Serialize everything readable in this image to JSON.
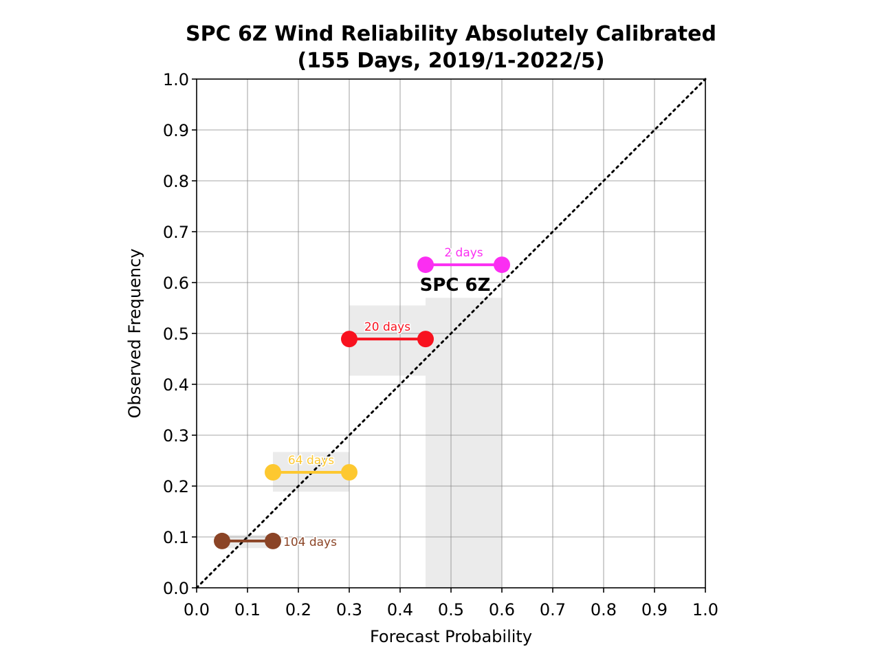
{
  "chart_data": {
    "type": "line",
    "title": "SPC 6Z Wind Reliability Absolutely Calibrated",
    "subtitle": "(155 Days, 2019/1-2022/5)",
    "xlabel": "Forecast Probability",
    "ylabel": "Observed Frequency",
    "xlim": [
      0.0,
      1.0
    ],
    "ylim": [
      0.0,
      1.0
    ],
    "xticks": [
      "0.0",
      "0.1",
      "0.2",
      "0.3",
      "0.4",
      "0.5",
      "0.6",
      "0.7",
      "0.8",
      "0.9",
      "1.0"
    ],
    "yticks": [
      "0.0",
      "0.1",
      "0.2",
      "0.3",
      "0.4",
      "0.5",
      "0.6",
      "0.7",
      "0.8",
      "0.9",
      "1.0"
    ],
    "grid": true,
    "model_label": "SPC 6Z",
    "perfect_reliability_line": {
      "x": [
        0.0,
        1.0
      ],
      "y": [
        0.0,
        1.0
      ],
      "style": "dotted",
      "color": "#000000"
    },
    "series": [
      {
        "x": [
          0.05,
          0.15
        ],
        "y": 0.092,
        "count_label": "104 days",
        "color": "#8b4426",
        "uncertainty_range": [
          0.078,
          0.104
        ]
      },
      {
        "x": [
          0.15,
          0.3
        ],
        "y": 0.227,
        "count_label": "64 days",
        "color": "#fdc830",
        "uncertainty_range": [
          0.189,
          0.267
        ]
      },
      {
        "x": [
          0.3,
          0.45
        ],
        "y": 0.489,
        "count_label": "20 days",
        "color": "#f8121f",
        "uncertainty_range": [
          0.417,
          0.555
        ]
      },
      {
        "x": [
          0.45,
          0.6
        ],
        "y": 0.635,
        "count_label": "2 days",
        "color": "#fb2ef2",
        "uncertainty_range": [
          0.0,
          0.57
        ]
      }
    ]
  }
}
